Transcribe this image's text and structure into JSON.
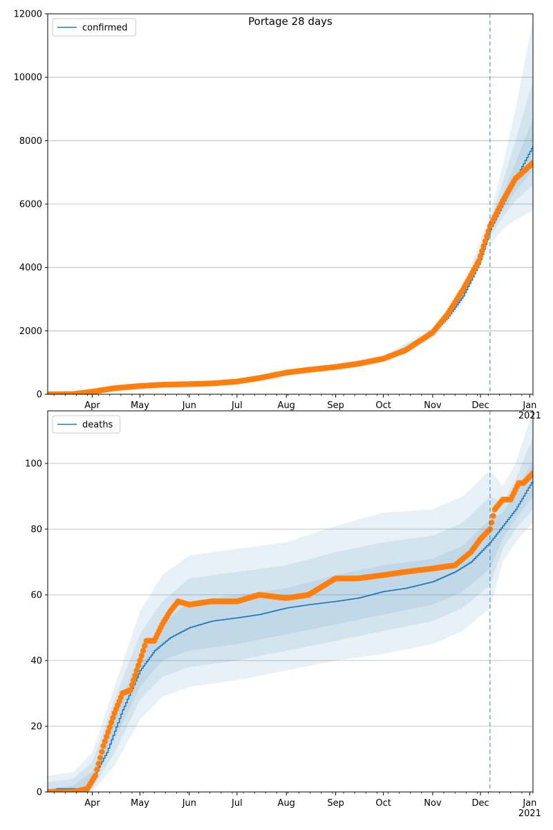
{
  "chart_data": [
    {
      "type": "line",
      "title": "Portage 28 days",
      "xlabel": "",
      "ylabel": "",
      "ylim": [
        0,
        12000
      ],
      "yticks": [
        0,
        2000,
        4000,
        6000,
        8000,
        10000,
        12000
      ],
      "x_range": [
        "2020-03-04",
        "2021-01-03"
      ],
      "x_tick_labels": [
        "Apr",
        "May",
        "Jun",
        "Jul",
        "Aug",
        "Sep",
        "Oct",
        "Nov",
        "Dec",
        "Jan\n2021"
      ],
      "grid": "horizontal",
      "legend": {
        "placement": "top-left",
        "entries": [
          "confirmed"
        ]
      },
      "forecast_start": "2020-12-07",
      "series": [
        {
          "name": "confirmed",
          "kind": "model-line",
          "color": "#1f77b4",
          "x": [
            "2020-03-04",
            "2020-03-20",
            "2020-04-01",
            "2020-04-15",
            "2020-05-01",
            "2020-05-15",
            "2020-06-01",
            "2020-06-15",
            "2020-07-01",
            "2020-07-15",
            "2020-08-01",
            "2020-08-15",
            "2020-09-01",
            "2020-09-15",
            "2020-10-01",
            "2020-10-15",
            "2020-11-01",
            "2020-11-10",
            "2020-11-20",
            "2020-11-30",
            "2020-12-07",
            "2020-12-15",
            "2020-12-23",
            "2021-01-03"
          ],
          "values": [
            0,
            10,
            70,
            180,
            250,
            290,
            330,
            360,
            410,
            520,
            700,
            780,
            860,
            960,
            1120,
            1400,
            1920,
            2400,
            3100,
            4100,
            5200,
            6000,
            6800,
            7850
          ]
        },
        {
          "name": "",
          "kind": "observed",
          "color": "#ff7f0e",
          "x": [
            "2020-03-04",
            "2020-03-20",
            "2020-04-01",
            "2020-04-15",
            "2020-05-01",
            "2020-05-15",
            "2020-06-01",
            "2020-06-15",
            "2020-07-01",
            "2020-07-15",
            "2020-08-01",
            "2020-08-15",
            "2020-09-01",
            "2020-09-15",
            "2020-10-01",
            "2020-10-15",
            "2020-11-01",
            "2020-11-10",
            "2020-11-20",
            "2020-11-30",
            "2020-12-07",
            "2020-12-15",
            "2020-12-23",
            "2021-01-03"
          ],
          "values": [
            0,
            5,
            80,
            190,
            260,
            300,
            320,
            340,
            400,
            510,
            680,
            770,
            860,
            960,
            1120,
            1390,
            1950,
            2500,
            3300,
            4200,
            5300,
            6100,
            6800,
            7300
          ]
        }
      ],
      "bands": [
        {
          "x": [
            "2020-03-04",
            "2020-04-01",
            "2020-05-01",
            "2020-06-01",
            "2020-07-01",
            "2020-08-01",
            "2020-09-01",
            "2020-10-01",
            "2020-11-01",
            "2020-11-20",
            "2020-12-07",
            "2020-12-15",
            "2020-12-23",
            "2021-01-03"
          ],
          "lower": [
            0,
            55,
            215,
            290,
            360,
            630,
            790,
            1030,
            1760,
            2850,
            4700,
            5200,
            5500,
            5800
          ],
          "upper": [
            10,
            90,
            285,
            370,
            460,
            780,
            940,
            1220,
            2090,
            3350,
            5700,
            7200,
            9000,
            11800
          ]
        },
        {
          "x": [
            "2020-03-04",
            "2020-04-01",
            "2020-05-01",
            "2020-06-01",
            "2020-07-01",
            "2020-08-01",
            "2020-09-01",
            "2020-10-01",
            "2020-11-01",
            "2020-11-20",
            "2020-12-07",
            "2020-12-15",
            "2020-12-23",
            "2021-01-03"
          ],
          "lower": [
            0,
            62,
            232,
            305,
            380,
            660,
            820,
            1070,
            1830,
            2960,
            4950,
            5600,
            6100,
            6600
          ],
          "upper": [
            5,
            80,
            270,
            355,
            440,
            745,
            905,
            1175,
            2010,
            3240,
            5450,
            6700,
            8000,
            9900
          ]
        },
        {
          "x": [
            "2020-03-04",
            "2020-04-01",
            "2020-05-01",
            "2020-06-01",
            "2020-07-01",
            "2020-08-01",
            "2020-09-01",
            "2020-10-01",
            "2020-11-01",
            "2020-11-20",
            "2020-12-07",
            "2020-12-15",
            "2020-12-23",
            "2021-01-03"
          ],
          "lower": [
            0,
            66,
            242,
            318,
            395,
            680,
            840,
            1095,
            1875,
            3030,
            5080,
            5800,
            6400,
            7100
          ],
          "upper": [
            2,
            75,
            260,
            342,
            425,
            720,
            880,
            1145,
            1965,
            3170,
            5320,
            6300,
            7300,
            8700
          ]
        }
      ]
    },
    {
      "type": "line",
      "title": "",
      "xlabel": "",
      "ylabel": "",
      "ylim": [
        0,
        116
      ],
      "yticks": [
        0,
        20,
        40,
        60,
        80,
        100
      ],
      "x_range": [
        "2020-03-04",
        "2021-01-03"
      ],
      "x_tick_labels": [
        "Apr",
        "May",
        "Jun",
        "Jul",
        "Aug",
        "Sep",
        "Oct",
        "Nov",
        "Dec",
        "Jan\n2021"
      ],
      "grid": "horizontal",
      "legend": {
        "placement": "top-left",
        "entries": [
          "deaths"
        ]
      },
      "forecast_start": "2020-12-07",
      "series": [
        {
          "name": "deaths",
          "kind": "model-line",
          "color": "#1f77b4",
          "x": [
            "2020-03-04",
            "2020-03-10",
            "2020-03-27",
            "2020-04-01",
            "2020-04-10",
            "2020-04-20",
            "2020-05-01",
            "2020-05-10",
            "2020-05-20",
            "2020-06-01",
            "2020-06-15",
            "2020-07-01",
            "2020-07-15",
            "2020-08-01",
            "2020-08-15",
            "2020-09-01",
            "2020-09-15",
            "2020-10-01",
            "2020-10-15",
            "2020-11-01",
            "2020-11-15",
            "2020-11-25",
            "2020-12-07",
            "2020-12-15",
            "2020-12-23",
            "2021-01-03"
          ],
          "values": [
            0,
            1,
            1,
            4,
            12,
            25,
            37,
            43,
            47,
            50,
            52,
            53,
            54,
            56,
            57,
            58,
            59,
            61,
            62,
            64,
            67,
            70,
            76,
            81,
            86,
            95
          ]
        },
        {
          "name": "",
          "kind": "observed",
          "color": "#ff7f0e",
          "x": [
            "2020-03-04",
            "2020-03-20",
            "2020-03-29",
            "2020-04-03",
            "2020-04-08",
            "2020-04-15",
            "2020-04-20",
            "2020-04-25",
            "2020-05-01",
            "2020-05-05",
            "2020-05-10",
            "2020-05-15",
            "2020-05-20",
            "2020-05-25",
            "2020-06-01",
            "2020-06-15",
            "2020-07-01",
            "2020-07-15",
            "2020-08-01",
            "2020-08-15",
            "2020-09-01",
            "2020-09-15",
            "2020-10-01",
            "2020-10-15",
            "2020-11-01",
            "2020-11-15",
            "2020-11-25",
            "2020-12-01",
            "2020-12-07",
            "2020-12-10",
            "2020-12-15",
            "2020-12-20",
            "2020-12-25",
            "2020-12-28",
            "2021-01-03"
          ],
          "values": [
            0,
            0,
            1,
            5,
            14,
            24,
            30,
            31,
            40,
            46,
            46,
            51,
            55,
            58,
            57,
            58,
            58,
            60,
            59,
            60,
            65,
            65,
            66,
            67,
            68,
            69,
            73,
            77,
            80,
            86,
            89,
            89,
            94,
            94,
            97
          ]
        }
      ],
      "bands": [
        {
          "x": [
            "2020-03-04",
            "2020-03-20",
            "2020-04-01",
            "2020-04-15",
            "2020-05-01",
            "2020-05-15",
            "2020-06-01",
            "2020-07-01",
            "2020-08-01",
            "2020-09-01",
            "2020-10-01",
            "2020-11-01",
            "2020-11-20",
            "2020-12-07",
            "2020-12-15",
            "2020-12-23",
            "2021-01-03"
          ],
          "lower": [
            0,
            0,
            0,
            8,
            22,
            29,
            32,
            34,
            37,
            40,
            42,
            45,
            49,
            56,
            70,
            76,
            82
          ],
          "upper": [
            5,
            6,
            12,
            32,
            55,
            66,
            72,
            74,
            76,
            81,
            85,
            86,
            90,
            98,
            93,
            100,
            116
          ]
        },
        {
          "x": [
            "2020-03-04",
            "2020-03-20",
            "2020-04-01",
            "2020-04-15",
            "2020-05-01",
            "2020-05-15",
            "2020-06-01",
            "2020-07-01",
            "2020-08-01",
            "2020-09-01",
            "2020-10-01",
            "2020-11-01",
            "2020-11-20",
            "2020-12-07",
            "2020-12-15",
            "2020-12-23",
            "2021-01-03"
          ],
          "lower": [
            0,
            0,
            1,
            12,
            28,
            35,
            38,
            40,
            43,
            46,
            49,
            52,
            56,
            63,
            74,
            80,
            86
          ],
          "upper": [
            3,
            4,
            9,
            28,
            48,
            58,
            65,
            67,
            69,
            73,
            76,
            78,
            82,
            90,
            88,
            95,
            108
          ]
        },
        {
          "x": [
            "2020-03-04",
            "2020-03-20",
            "2020-04-01",
            "2020-04-15",
            "2020-05-01",
            "2020-05-15",
            "2020-06-01",
            "2020-07-01",
            "2020-08-01",
            "2020-09-01",
            "2020-10-01",
            "2020-11-01",
            "2020-11-20",
            "2020-12-07",
            "2020-12-15",
            "2020-12-23",
            "2021-01-03"
          ],
          "lower": [
            0,
            0,
            2,
            16,
            32,
            40,
            43,
            45,
            48,
            51,
            54,
            57,
            61,
            68,
            77,
            83,
            90
          ],
          "upper": [
            1,
            2,
            6,
            23,
            42,
            51,
            58,
            60,
            62,
            66,
            69,
            71,
            75,
            83,
            85,
            91,
            101
          ]
        }
      ]
    }
  ]
}
